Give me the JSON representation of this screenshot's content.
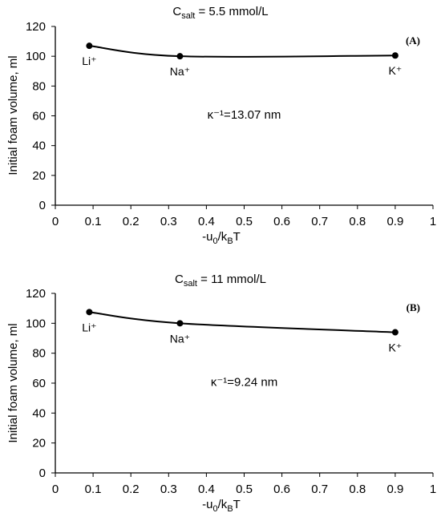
{
  "chart_data": [
    {
      "type": "line",
      "panel_label": "(A)",
      "title": "C_salt = 5.5 mmol/L",
      "xlabel": "-u_0/k_B T",
      "ylabel": "Initial foam volume, ml",
      "xlim": [
        0,
        1
      ],
      "ylim": [
        0,
        120
      ],
      "x_ticks": [
        "0",
        "0.1",
        "0.2",
        "0.3",
        "0.4",
        "0.5",
        "0.6",
        "0.7",
        "0.8",
        "0.9",
        "1"
      ],
      "y_ticks": [
        "0",
        "20",
        "40",
        "60",
        "80",
        "100",
        "120"
      ],
      "points": [
        {
          "label": "Li⁺",
          "x": 0.09,
          "y": 107
        },
        {
          "label": "Na⁺",
          "x": 0.33,
          "y": 100
        },
        {
          "label": "K⁺",
          "x": 0.9,
          "y": 100.5
        }
      ],
      "annotation": "κ⁻¹=13.07 nm",
      "grid": false
    },
    {
      "type": "line",
      "panel_label": "(B)",
      "title": "C_salt = 11 mmol/L",
      "xlabel": "-u_0/k_B T",
      "ylabel": "Initial foam volume, ml",
      "xlim": [
        0,
        1
      ],
      "ylim": [
        0,
        120
      ],
      "x_ticks": [
        "0",
        "0.1",
        "0.2",
        "0.3",
        "0.4",
        "0.5",
        "0.6",
        "0.7",
        "0.8",
        "0.9",
        "1"
      ],
      "y_ticks": [
        "0",
        "20",
        "40",
        "60",
        "80",
        "100",
        "120"
      ],
      "points": [
        {
          "label": "Li⁺",
          "x": 0.09,
          "y": 107.5
        },
        {
          "label": "Na⁺",
          "x": 0.33,
          "y": 100
        },
        {
          "label": "K⁺",
          "x": 0.9,
          "y": 94
        }
      ],
      "annotation": "κ⁻¹=9.24 nm",
      "grid": false
    }
  ],
  "texts": {
    "title_prefix": "C",
    "title_sub": "salt",
    "title_A_rest": " = 5.5 mmol/L",
    "title_B_rest": " = 11 mmol/L",
    "xlabel_a": "-u",
    "xlabel_sub1": "0",
    "xlabel_b": "/k",
    "xlabel_sub2": "B",
    "xlabel_c": "T"
  }
}
